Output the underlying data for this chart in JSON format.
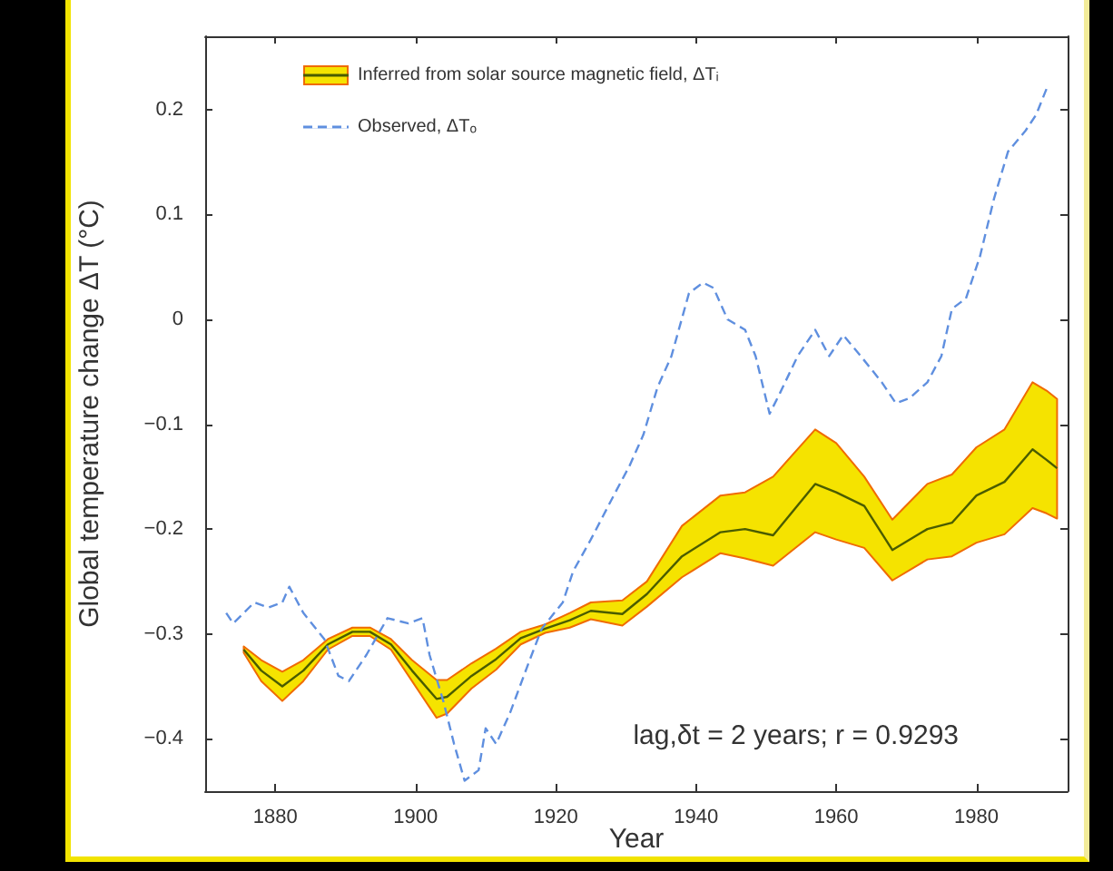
{
  "chart_data": {
    "type": "line",
    "xlabel": "Year",
    "ylabel": "Global temperature change ΔT (°C)",
    "xlim": [
      1870,
      1993
    ],
    "xticks": [
      1880,
      1900,
      1920,
      1940,
      1960,
      1980
    ],
    "ylim": [
      -0.45,
      0.27
    ],
    "yticks": [
      {
        "value": -0.4,
        "label": "−0.4"
      },
      {
        "value": -0.3,
        "label": "−0.3"
      },
      {
        "value": -0.2,
        "label": "−0.2"
      },
      {
        "value": -0.1,
        "label": "−0.1"
      },
      0,
      0.1,
      0.2
    ],
    "legend": "top left",
    "marker": "none",
    "annotations": [
      "lag,δt = 2 years; r = 0.9293"
    ],
    "series": [
      {
        "name": "Inferred from solar source magnetic field, ΔTᵢ",
        "color": "#4a5c00",
        "line_style": "solid",
        "x": [
          1875.5,
          1878,
          1881,
          1884,
          1887.5,
          1891,
          1893.5,
          1896.5,
          1899.5,
          1903,
          1904.5,
          1908,
          1911.5,
          1915,
          1918.5,
          1922,
          1925,
          1929.5,
          1933,
          1938,
          1943.5,
          1947,
          1951,
          1957,
          1960,
          1964,
          1968,
          1973,
          1976.5,
          1980,
          1984,
          1988,
          1990,
          1991.5
        ],
        "values": [
          -0.315,
          -0.335,
          -0.35,
          -0.335,
          -0.31,
          -0.298,
          -0.298,
          -0.31,
          -0.335,
          -0.362,
          -0.36,
          -0.34,
          -0.324,
          -0.304,
          -0.295,
          -0.287,
          -0.278,
          -0.281,
          -0.262,
          -0.226,
          -0.203,
          -0.2,
          -0.206,
          -0.157,
          -0.165,
          -0.178,
          -0.22,
          -0.2,
          -0.194,
          -0.168,
          -0.155,
          -0.124,
          -0.134,
          -0.142
        ],
        "lower": [
          -0.318,
          -0.345,
          -0.364,
          -0.345,
          -0.315,
          -0.302,
          -0.302,
          -0.315,
          -0.345,
          -0.38,
          -0.376,
          -0.352,
          -0.334,
          -0.31,
          -0.299,
          -0.294,
          -0.286,
          -0.292,
          -0.274,
          -0.246,
          -0.223,
          -0.228,
          -0.235,
          -0.203,
          -0.21,
          -0.218,
          -0.249,
          -0.229,
          -0.226,
          -0.213,
          -0.205,
          -0.18,
          -0.185,
          -0.19
        ],
        "upper": [
          -0.312,
          -0.325,
          -0.336,
          -0.325,
          -0.305,
          -0.294,
          -0.294,
          -0.305,
          -0.325,
          -0.344,
          -0.344,
          -0.328,
          -0.314,
          -0.298,
          -0.291,
          -0.28,
          -0.27,
          -0.268,
          -0.25,
          -0.197,
          -0.168,
          -0.165,
          -0.15,
          -0.105,
          -0.118,
          -0.15,
          -0.191,
          -0.157,
          -0.148,
          -0.122,
          -0.105,
          -0.06,
          -0.068,
          -0.076
        ]
      },
      {
        "name": "Observed, ΔTₒ",
        "color": "#5f8fdf",
        "line_style": "dashed",
        "x": [
          1873,
          1874,
          1877,
          1879,
          1881,
          1882,
          1884,
          1887,
          1889,
          1890.5,
          1893,
          1896,
          1899,
          1901,
          1902,
          1904,
          1905.5,
          1907,
          1909,
          1910,
          1911.5,
          1913.5,
          1916,
          1918,
          1921,
          1922.5,
          1925,
          1928.5,
          1930.5,
          1932.5,
          1934.5,
          1936.5,
          1939,
          1941,
          1942.5,
          1944.5,
          1947,
          1948.5,
          1950.5,
          1952,
          1954.5,
          1957,
          1959,
          1961,
          1963.5,
          1966.5,
          1968.5,
          1970.5,
          1973,
          1975,
          1976.5,
          1978.5,
          1980.5,
          1982.5,
          1984.5,
          1987,
          1988.5,
          1990
        ],
        "values": [
          -0.28,
          -0.29,
          -0.27,
          -0.275,
          -0.27,
          -0.255,
          -0.28,
          -0.305,
          -0.34,
          -0.345,
          -0.32,
          -0.285,
          -0.29,
          -0.285,
          -0.32,
          -0.365,
          -0.405,
          -0.44,
          -0.43,
          -0.39,
          -0.405,
          -0.375,
          -0.33,
          -0.295,
          -0.27,
          -0.24,
          -0.21,
          -0.165,
          -0.14,
          -0.11,
          -0.065,
          -0.035,
          0.025,
          0.035,
          0.03,
          0,
          -0.01,
          -0.035,
          -0.09,
          -0.07,
          -0.035,
          -0.01,
          -0.035,
          -0.015,
          -0.035,
          -0.06,
          -0.08,
          -0.075,
          -0.06,
          -0.035,
          0.01,
          0.02,
          0.06,
          0.115,
          0.16,
          0.18,
          0.195,
          0.22
        ]
      }
    ]
  }
}
